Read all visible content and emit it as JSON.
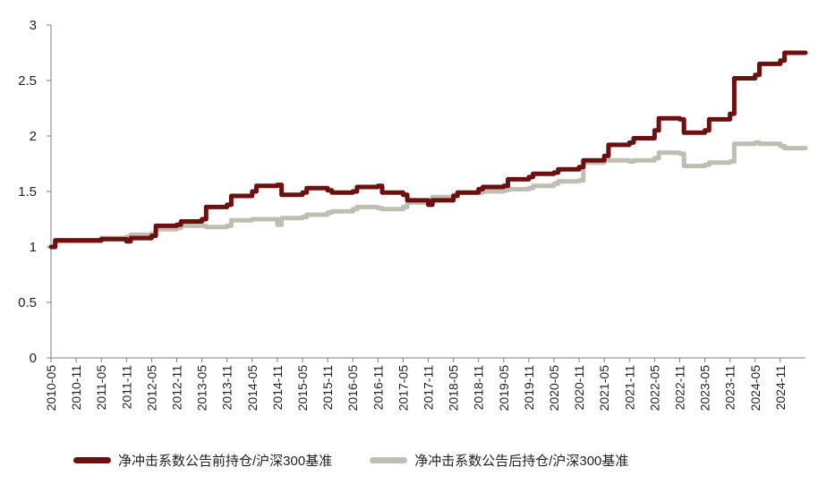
{
  "chart_data": {
    "type": "line",
    "title": "",
    "xlabel": "",
    "ylabel": "",
    "ylim": [
      0,
      3
    ],
    "y_ticks": [
      "0",
      "0.5",
      "1",
      "1.5",
      "2",
      "2.5",
      "3"
    ],
    "x_range": [
      "2010-05",
      "2025-05"
    ],
    "x_ticks": [
      "2010-05",
      "2010-11",
      "2011-05",
      "2011-11",
      "2012-05",
      "2012-11",
      "2013-05",
      "2013-11",
      "2014-05",
      "2014-11",
      "2015-05",
      "2015-11",
      "2016-05",
      "2016-11",
      "2017-05",
      "2017-11",
      "2018-05",
      "2018-11",
      "2019-05",
      "2019-11",
      "2020-05",
      "2020-11",
      "2021-05",
      "2021-11",
      "2022-05",
      "2022-11",
      "2023-05",
      "2023-11",
      "2024-05",
      "2024-11"
    ],
    "grid": false,
    "legend_position": "bottom",
    "series": [
      {
        "name": "净冲击系数公告前持仓/沪深300基准",
        "color": "#6d0f0f",
        "points": [
          [
            "2010-05",
            1.0
          ],
          [
            "2010-06",
            1.06
          ],
          [
            "2011-05",
            1.07
          ],
          [
            "2011-11",
            1.05
          ],
          [
            "2011-12",
            1.08
          ],
          [
            "2012-05",
            1.1
          ],
          [
            "2012-06",
            1.19
          ],
          [
            "2012-11",
            1.2
          ],
          [
            "2012-12",
            1.23
          ],
          [
            "2013-05",
            1.25
          ],
          [
            "2013-06",
            1.36
          ],
          [
            "2013-11",
            1.38
          ],
          [
            "2013-12",
            1.46
          ],
          [
            "2014-05",
            1.5
          ],
          [
            "2014-06",
            1.55
          ],
          [
            "2014-11",
            1.56
          ],
          [
            "2014-12",
            1.47
          ],
          [
            "2015-05",
            1.49
          ],
          [
            "2015-06",
            1.53
          ],
          [
            "2015-11",
            1.51
          ],
          [
            "2015-12",
            1.49
          ],
          [
            "2016-05",
            1.5
          ],
          [
            "2016-06",
            1.54
          ],
          [
            "2016-11",
            1.55
          ],
          [
            "2016-12",
            1.49
          ],
          [
            "2017-05",
            1.47
          ],
          [
            "2017-06",
            1.42
          ],
          [
            "2017-11",
            1.38
          ],
          [
            "2017-12",
            1.42
          ],
          [
            "2018-05",
            1.46
          ],
          [
            "2018-06",
            1.49
          ],
          [
            "2018-11",
            1.52
          ],
          [
            "2018-12",
            1.54
          ],
          [
            "2019-05",
            1.55
          ],
          [
            "2019-06",
            1.61
          ],
          [
            "2019-11",
            1.63
          ],
          [
            "2019-12",
            1.66
          ],
          [
            "2020-05",
            1.67
          ],
          [
            "2020-06",
            1.7
          ],
          [
            "2020-11",
            1.72
          ],
          [
            "2020-12",
            1.78
          ],
          [
            "2021-05",
            1.82
          ],
          [
            "2021-06",
            1.92
          ],
          [
            "2021-11",
            1.94
          ],
          [
            "2021-12",
            1.98
          ],
          [
            "2022-05",
            2.05
          ],
          [
            "2022-06",
            2.16
          ],
          [
            "2022-11",
            2.15
          ],
          [
            "2022-12",
            2.03
          ],
          [
            "2023-05",
            2.05
          ],
          [
            "2023-06",
            2.15
          ],
          [
            "2023-11",
            2.2
          ],
          [
            "2023-12",
            2.52
          ],
          [
            "2024-05",
            2.55
          ],
          [
            "2024-06",
            2.65
          ],
          [
            "2024-11",
            2.68
          ],
          [
            "2024-12",
            2.75
          ],
          [
            "2025-05",
            2.75
          ]
        ]
      },
      {
        "name": "净冲击系数公告后持仓/沪深300基准",
        "color": "#c0bdb2",
        "points": [
          [
            "2010-05",
            1.0
          ],
          [
            "2010-06",
            1.05
          ],
          [
            "2011-05",
            1.08
          ],
          [
            "2011-11",
            1.09
          ],
          [
            "2011-12",
            1.11
          ],
          [
            "2012-05",
            1.12
          ],
          [
            "2012-06",
            1.16
          ],
          [
            "2012-11",
            1.17
          ],
          [
            "2012-12",
            1.19
          ],
          [
            "2013-05",
            1.19
          ],
          [
            "2013-06",
            1.18
          ],
          [
            "2013-11",
            1.19
          ],
          [
            "2013-12",
            1.24
          ],
          [
            "2014-05",
            1.25
          ],
          [
            "2014-06",
            1.25
          ],
          [
            "2014-11",
            1.2
          ],
          [
            "2014-12",
            1.26
          ],
          [
            "2015-05",
            1.27
          ],
          [
            "2015-06",
            1.29
          ],
          [
            "2015-11",
            1.31
          ],
          [
            "2015-12",
            1.32
          ],
          [
            "2016-05",
            1.34
          ],
          [
            "2016-06",
            1.36
          ],
          [
            "2016-11",
            1.35
          ],
          [
            "2016-12",
            1.34
          ],
          [
            "2017-05",
            1.36
          ],
          [
            "2017-06",
            1.4
          ],
          [
            "2017-11",
            1.42
          ],
          [
            "2017-12",
            1.45
          ],
          [
            "2018-05",
            1.47
          ],
          [
            "2018-06",
            1.49
          ],
          [
            "2018-11",
            1.49
          ],
          [
            "2018-12",
            1.5
          ],
          [
            "2019-05",
            1.51
          ],
          [
            "2019-06",
            1.52
          ],
          [
            "2019-11",
            1.53
          ],
          [
            "2019-12",
            1.55
          ],
          [
            "2020-05",
            1.57
          ],
          [
            "2020-06",
            1.59
          ],
          [
            "2020-11",
            1.6
          ],
          [
            "2020-12",
            1.76
          ],
          [
            "2021-05",
            1.78
          ],
          [
            "2021-06",
            1.78
          ],
          [
            "2021-11",
            1.77
          ],
          [
            "2021-12",
            1.78
          ],
          [
            "2022-05",
            1.8
          ],
          [
            "2022-06",
            1.85
          ],
          [
            "2022-11",
            1.84
          ],
          [
            "2022-12",
            1.73
          ],
          [
            "2023-05",
            1.74
          ],
          [
            "2023-06",
            1.76
          ],
          [
            "2023-11",
            1.77
          ],
          [
            "2023-12",
            1.93
          ],
          [
            "2024-05",
            1.94
          ],
          [
            "2024-06",
            1.93
          ],
          [
            "2024-11",
            1.91
          ],
          [
            "2024-12",
            1.89
          ],
          [
            "2025-05",
            1.89
          ]
        ]
      }
    ]
  }
}
